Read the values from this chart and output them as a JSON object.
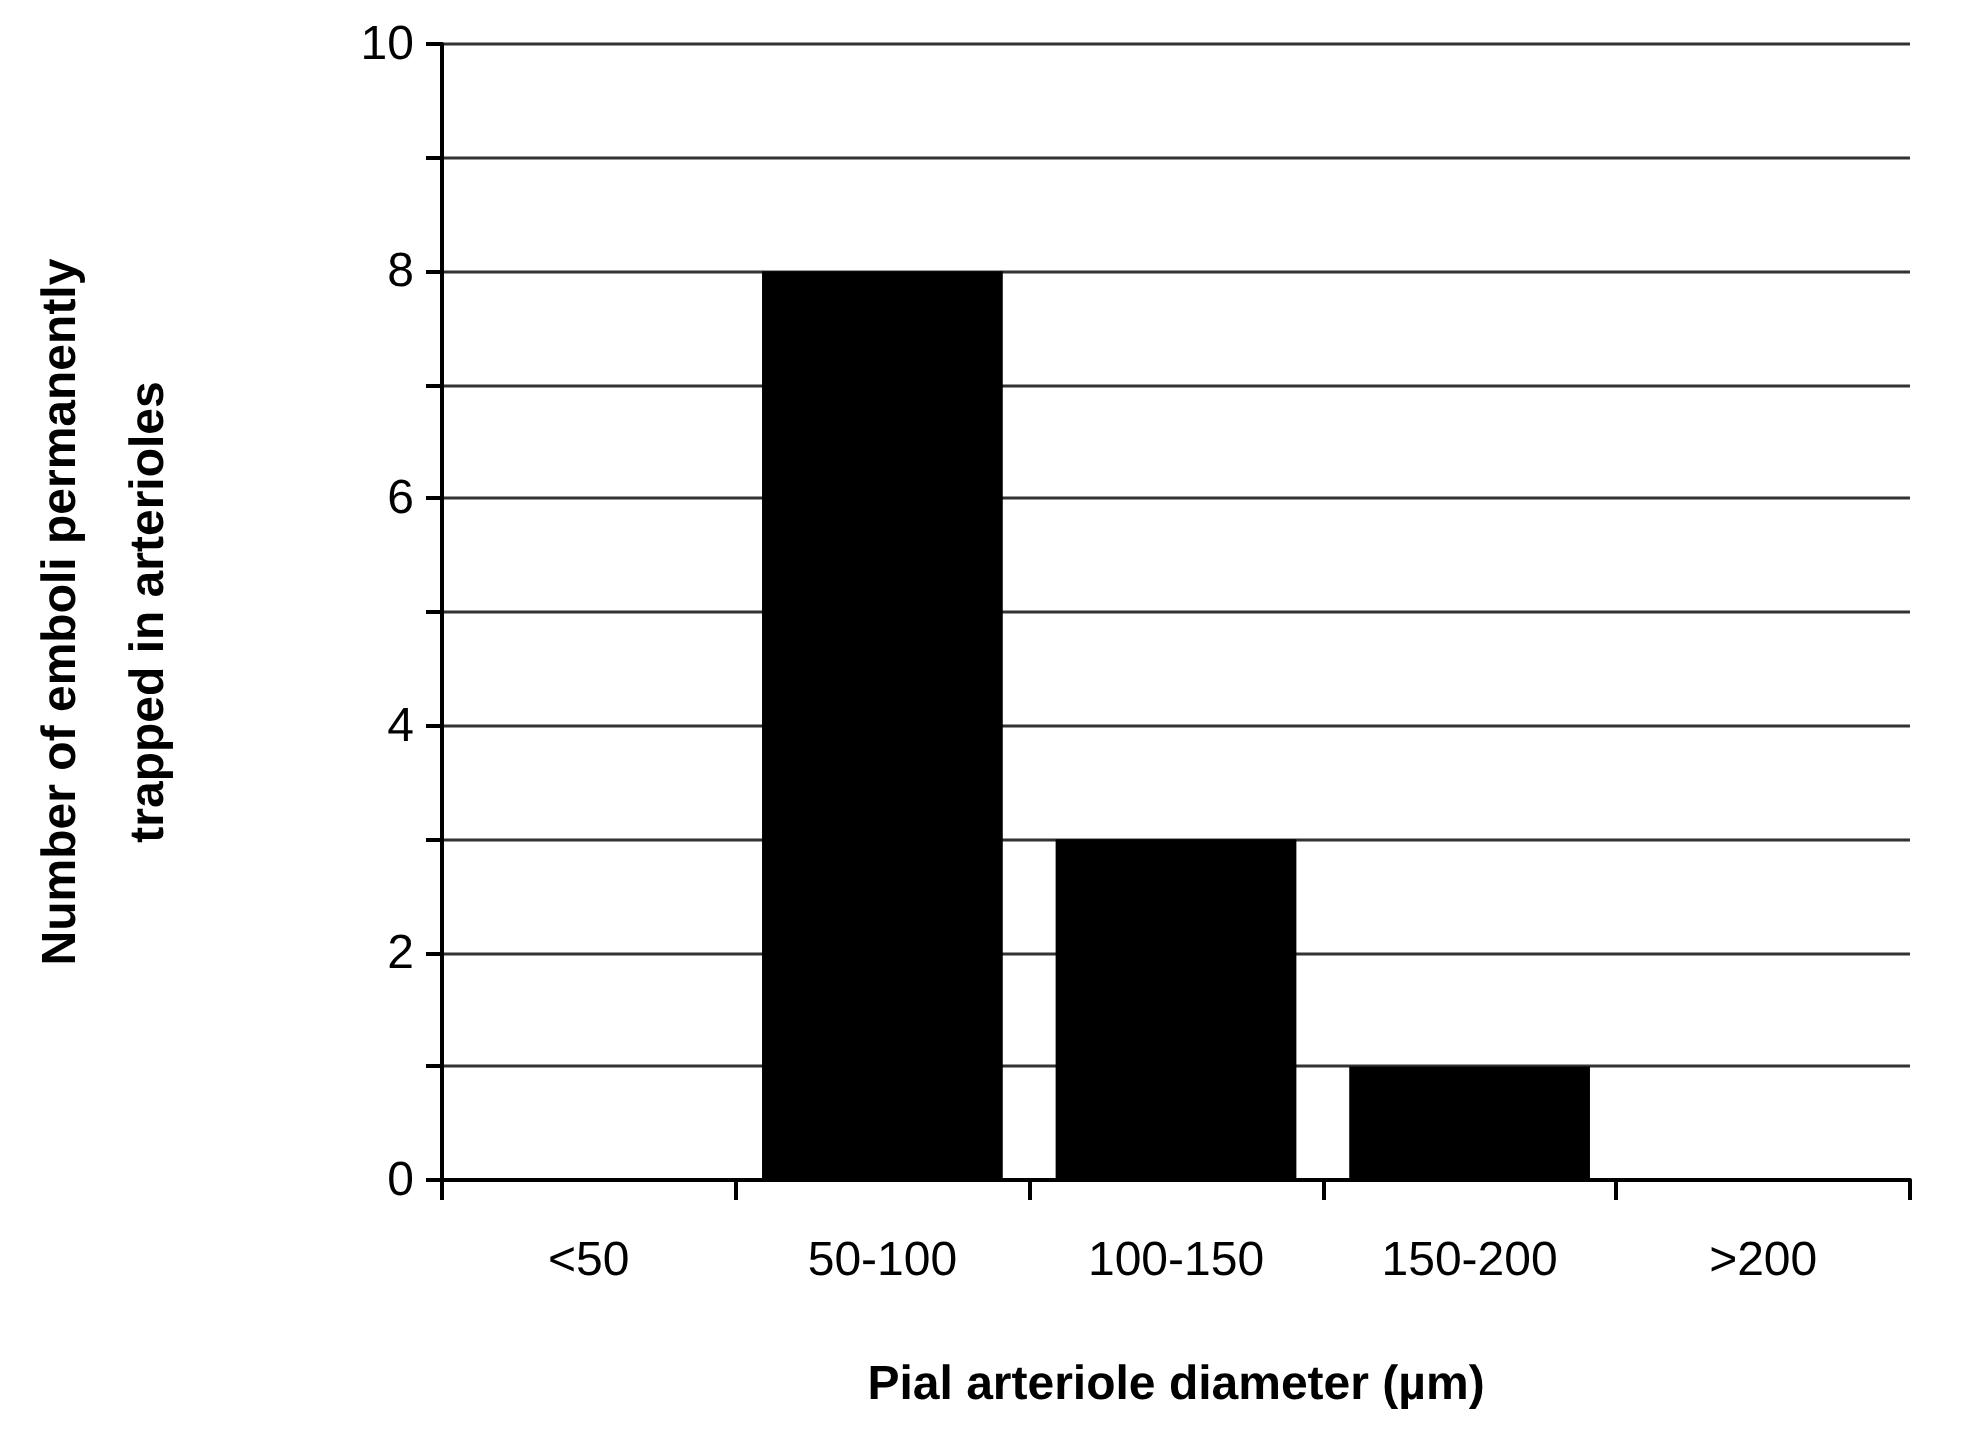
{
  "chart_data": {
    "type": "bar",
    "xlabel": "Pial arteriole diameter (µm)",
    "ylabel": "Number of emboli permanently\ntrapped in arterioles",
    "categories": [
      "<50",
      "50-100",
      "100-150",
      "150-200",
      ">200"
    ],
    "values": [
      0,
      8,
      3,
      1,
      0
    ],
    "color": "#000000",
    "ylim": [
      0,
      10
    ],
    "yticks": [
      0,
      {
        "value": 1,
        "label": null
      },
      2,
      {
        "value": 3,
        "label": null
      },
      4,
      {
        "value": 5,
        "label": null
      },
      6,
      {
        "value": 7,
        "label": null
      },
      8,
      {
        "value": 9,
        "label": null
      },
      10
    ],
    "grid": "y"
  }
}
